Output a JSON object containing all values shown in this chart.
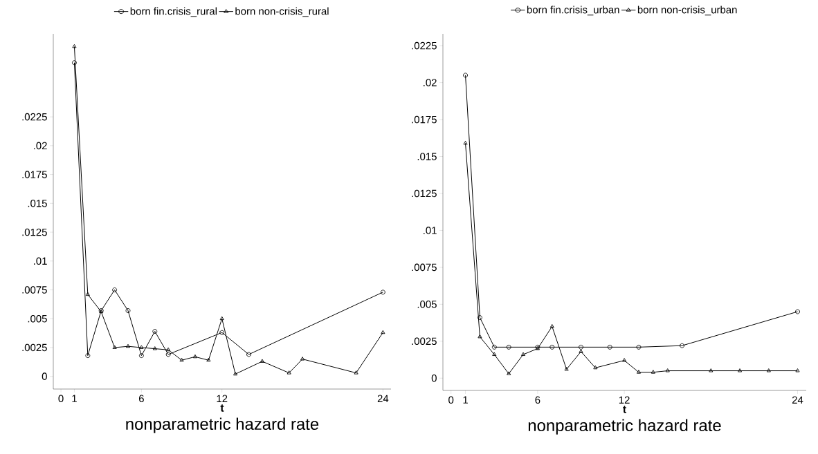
{
  "chart_data": [
    {
      "type": "line",
      "title": "nonparametric hazard rate",
      "xlabel": "t",
      "legend": "top",
      "line_style": "solid",
      "xlim": [
        -0.57,
        24.6
      ],
      "ylim": [
        -0.0011,
        0.0297
      ],
      "xticks": [
        0,
        1,
        6,
        12,
        24
      ],
      "yticks": [
        {
          "value": 0,
          "label": "0"
        },
        {
          "value": 0.0025,
          "label": ".0025"
        },
        {
          "value": 0.005,
          "label": ".005"
        },
        {
          "value": 0.0075,
          "label": ".0075"
        },
        {
          "value": 0.01,
          "label": ".01"
        },
        {
          "value": 0.0125,
          "label": ".0125"
        },
        {
          "value": 0.015,
          "label": ".015"
        },
        {
          "value": 0.0175,
          "label": ".0175"
        },
        {
          "value": 0.02,
          "label": ".02"
        },
        {
          "value": 0.0225,
          "label": ".0225"
        }
      ],
      "series": [
        {
          "name": "born fin.crisis_rural",
          "color": "#000000",
          "marker": "circle",
          "x": [
            1,
            2,
            3,
            4,
            5,
            6,
            7,
            8,
            12,
            14,
            24
          ],
          "values": [
            0.0272,
            0.0018,
            0.0057,
            0.0075,
            0.0057,
            0.0018,
            0.0039,
            0.0019,
            0.0038,
            0.0019,
            0.0073
          ]
        },
        {
          "name": "born non-crisis_rural",
          "color": "#000000",
          "marker": "triangle",
          "x": [
            1,
            2,
            3,
            4,
            5,
            6,
            7,
            8,
            9,
            10,
            11,
            12,
            13,
            15,
            17,
            18,
            22,
            24
          ],
          "values": [
            0.0286,
            0.0071,
            0.0056,
            0.0025,
            0.0026,
            0.0025,
            0.0024,
            0.0023,
            0.0014,
            0.0017,
            0.0014,
            0.005,
            0.0002,
            0.0013,
            0.0003,
            0.0015,
            0.0003,
            0.0038
          ]
        }
      ]
    },
    {
      "type": "line",
      "title": "nonparametric hazard rate",
      "xlabel": "t",
      "legend": "top",
      "line_style": "solid",
      "xlim": [
        -0.56,
        24.6
      ],
      "ylim": [
        -0.00083,
        0.0233
      ],
      "xticks": [
        0,
        1,
        6,
        12,
        24
      ],
      "yticks": [
        {
          "value": 0,
          "label": "0"
        },
        {
          "value": 0.0025,
          "label": ".0025"
        },
        {
          "value": 0.005,
          "label": ".005"
        },
        {
          "value": 0.0075,
          "label": ".0075"
        },
        {
          "value": 0.01,
          "label": ".01"
        },
        {
          "value": 0.0125,
          "label": ".0125"
        },
        {
          "value": 0.015,
          "label": ".015"
        },
        {
          "value": 0.0175,
          "label": ".0175"
        },
        {
          "value": 0.02,
          "label": ".02"
        },
        {
          "value": 0.0225,
          "label": ".0225"
        }
      ],
      "series": [
        {
          "name": "born fin.crisis_urban",
          "color": "#000000",
          "marker": "circle",
          "x": [
            1,
            2,
            3,
            4,
            6,
            7,
            9,
            11,
            13,
            16,
            24
          ],
          "values": [
            0.0205,
            0.0041,
            0.0021,
            0.0021,
            0.0021,
            0.0021,
            0.0021,
            0.0021,
            0.0021,
            0.0022,
            0.0045
          ]
        },
        {
          "name": "born non-crisis_urban",
          "color": "#000000",
          "marker": "triangle",
          "x": [
            1,
            2,
            3,
            4,
            5,
            6,
            7,
            8,
            9,
            10,
            12,
            13,
            14,
            15,
            18,
            20,
            22,
            24
          ],
          "values": [
            0.0159,
            0.0028,
            0.0016,
            0.0003,
            0.0016,
            0.002,
            0.0035,
            0.0006,
            0.0018,
            0.0007,
            0.0012,
            0.0004,
            0.0004,
            0.0005,
            0.0005,
            0.0005,
            0.0005,
            0.0005
          ]
        }
      ]
    }
  ]
}
